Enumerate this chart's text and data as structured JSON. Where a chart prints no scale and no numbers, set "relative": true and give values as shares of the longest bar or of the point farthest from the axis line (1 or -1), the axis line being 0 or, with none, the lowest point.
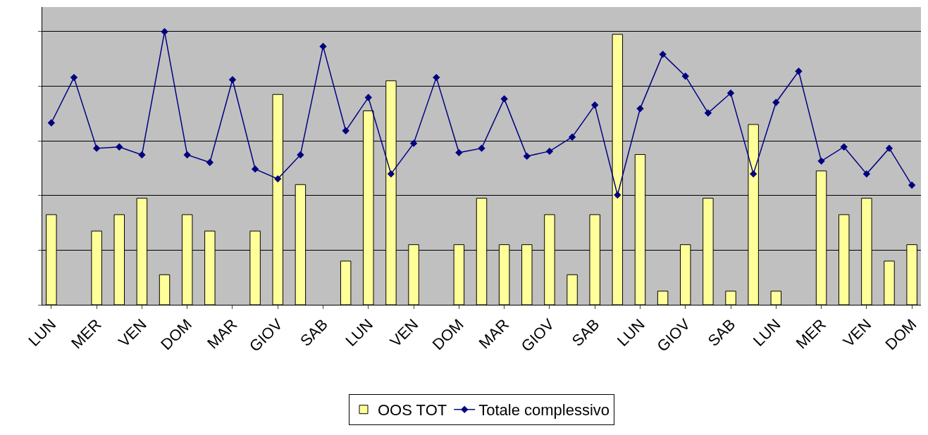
{
  "chart_data": {
    "type": "bar",
    "relative": true,
    "grid": "y",
    "legend": "bottom",
    "marker": "diamond",
    "categories": [
      "LUN",
      null,
      "MER",
      null,
      "VEN",
      null,
      "DOM",
      null,
      "MAR",
      null,
      "GIOV",
      null,
      "SAB",
      null,
      "LUN",
      null,
      "VEN",
      null,
      "DOM",
      null,
      "MAR",
      null,
      "GIOV",
      null,
      "SAB",
      null,
      "LUN",
      null,
      "GIOV",
      null,
      "SAB",
      null,
      "LUN",
      null,
      "MER",
      null,
      "VEN",
      null,
      "DOM"
    ],
    "series": [
      {
        "name": "OOS TOT",
        "color": "#ffff99",
        "values": [
          0.33,
          null,
          0.27,
          0.33,
          0.39,
          0.11,
          0.33,
          0.27,
          null,
          0.27,
          0.77,
          0.44,
          null,
          0.16,
          0.71,
          0.82,
          0.22,
          null,
          0.22,
          0.39,
          0.22,
          0.22,
          0.33,
          0.11,
          0.33,
          0.99,
          0.55,
          0.05,
          0.22,
          0.39,
          0.05,
          0.66,
          0.05,
          null,
          0.49,
          0.33,
          0.39,
          0.16,
          0.22
        ]
      },
      {
        "name": "Totale complessivo",
        "type": "line",
        "color": "#000080",
        "values": [
          0.666,
          0.832,
          0.573,
          0.578,
          0.549,
          1,
          0.549,
          0.521,
          0.824,
          0.497,
          0.461,
          0.549,
          0.946,
          0.637,
          0.759,
          0.479,
          0.591,
          0.832,
          0.557,
          0.573,
          0.754,
          0.544,
          0.562,
          0.614,
          0.731,
          0.402,
          0.718,
          0.917,
          0.837,
          0.702,
          0.775,
          0.479,
          0.741,
          0.855,
          0.526,
          0.578,
          0.479,
          0.573,
          0.438
        ]
      }
    ]
  }
}
